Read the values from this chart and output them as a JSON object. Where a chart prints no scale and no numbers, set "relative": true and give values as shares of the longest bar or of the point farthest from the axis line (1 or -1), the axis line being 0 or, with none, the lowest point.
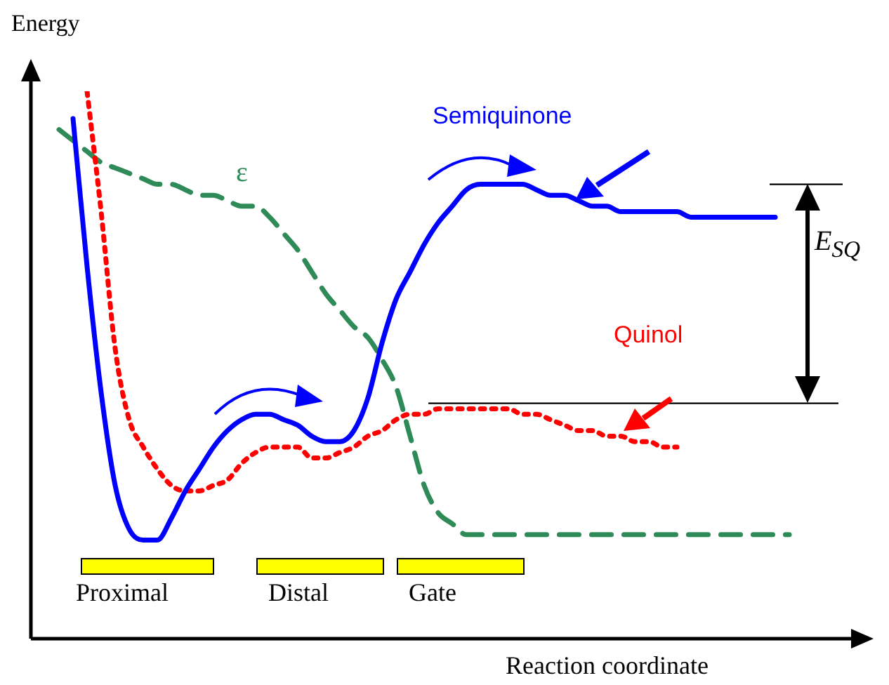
{
  "chart_data": {
    "type": "line",
    "relative": true,
    "xlabel": "Reaction coordinate",
    "ylabel": "Energy",
    "categories": [
      null,
      null,
      null,
      null,
      null,
      null,
      null,
      null,
      null,
      null,
      null,
      null,
      null,
      null,
      null,
      null,
      null,
      null,
      null,
      null,
      null,
      null,
      null,
      null,
      null,
      null,
      null,
      null,
      null,
      null,
      null,
      null,
      null,
      null,
      null,
      null,
      null,
      null,
      null,
      null,
      null,
      null,
      null,
      null,
      null,
      null,
      null,
      null,
      null,
      null,
      null,
      null,
      null,
      null,
      null,
      null,
      null,
      null,
      null,
      null,
      null
    ],
    "series": [
      {
        "name": "Semiquinone",
        "color": "#0000ff",
        "line_style": "solid",
        "values": [
          null,
          null,
          null,
          0.95,
          0.68,
          0.45,
          0.28,
          0.2,
          0.18,
          0.18,
          0.22,
          0.27,
          0.31,
          0.35,
          0.38,
          0.4,
          0.41,
          0.41,
          0.4,
          0.39,
          0.37,
          0.36,
          0.36,
          0.38,
          0.44,
          0.54,
          0.62,
          0.67,
          0.72,
          0.76,
          0.79,
          0.82,
          0.83,
          0.83,
          0.83,
          0.83,
          0.82,
          0.81,
          0.81,
          0.8,
          0.79,
          0.79,
          0.78,
          0.78,
          0.78,
          0.78,
          0.78,
          0.77,
          0.77,
          0.77,
          0.77,
          0.77,
          0.77,
          0.77,
          null,
          null,
          null,
          null,
          null,
          null,
          null
        ]
      },
      {
        "name": "Quinol",
        "color": "#ff0000",
        "line_style": "dotted",
        "values": [
          null,
          null,
          null,
          null,
          1.0,
          0.78,
          0.53,
          0.4,
          0.35,
          0.31,
          0.28,
          0.27,
          0.27,
          0.28,
          0.29,
          0.32,
          0.34,
          0.35,
          0.35,
          0.35,
          0.33,
          0.33,
          0.34,
          0.35,
          0.37,
          0.38,
          0.4,
          0.41,
          0.41,
          0.42,
          0.42,
          0.42,
          0.42,
          0.42,
          0.42,
          0.41,
          0.41,
          0.4,
          0.39,
          0.38,
          0.38,
          0.37,
          0.37,
          0.36,
          0.36,
          0.35,
          0.35,
          null,
          null,
          null,
          null,
          null,
          null,
          null,
          null,
          null,
          null,
          null,
          null,
          null,
          null
        ]
      },
      {
        "name": "ε",
        "color": "#2e8b57",
        "line_style": "dashed",
        "values": [
          null,
          null,
          0.93,
          0.91,
          0.89,
          0.87,
          0.86,
          0.85,
          0.84,
          0.83,
          0.83,
          0.82,
          0.81,
          0.81,
          0.8,
          0.79,
          0.79,
          0.77,
          0.74,
          0.71,
          0.67,
          0.63,
          0.6,
          0.57,
          0.55,
          0.51,
          0.46,
          0.37,
          0.28,
          0.23,
          0.21,
          0.19,
          0.19,
          0.19,
          0.19,
          0.19,
          0.19,
          0.19,
          0.19,
          0.19,
          0.19,
          0.19,
          0.19,
          0.19,
          0.19,
          0.19,
          0.19,
          0.19,
          0.19,
          0.19,
          0.19,
          0.19,
          0.19,
          0.19,
          0.19,
          null,
          null,
          null,
          null,
          null,
          null
        ]
      }
    ],
    "annotations": [
      "Proximal",
      "Distal",
      "Gate",
      "E$_{SQ}$"
    ],
    "ref_lines": [
      {
        "axis": "y",
        "value": 0.83,
        "color": "#000000"
      },
      {
        "axis": "y",
        "value": 0.43,
        "color": "#000000"
      }
    ],
    "legend": false,
    "marker": "none"
  }
}
